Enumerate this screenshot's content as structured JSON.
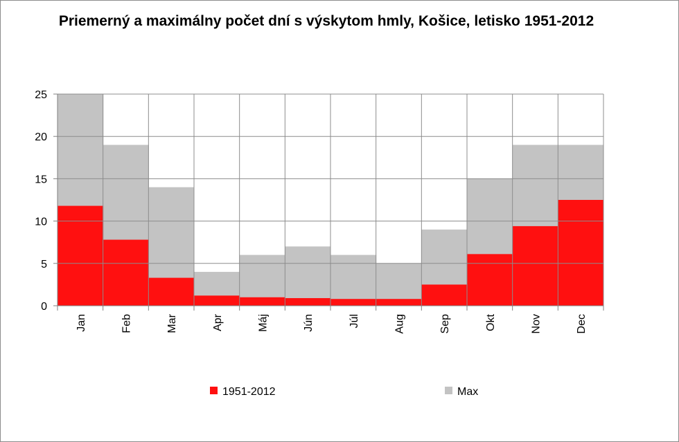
{
  "title": "Priemerný a maximálny počet dní s výskytom hmly, Košice, letisko 1951-2012",
  "chart_data": {
    "type": "area",
    "title": "Priemerný a maximálny počet dní s výskytom hmly, Košice, letisko 1951-2012",
    "xlabel": "",
    "ylabel": "",
    "categories": [
      "Jan",
      "Feb",
      "Mar",
      "Apr",
      "Máj",
      "Jún",
      "Júl",
      "Aug",
      "Sep",
      "Okt",
      "Nov",
      "Dec"
    ],
    "y_ticks": [
      0,
      5,
      10,
      15,
      20,
      25
    ],
    "ylim": [
      0,
      25
    ],
    "grid": true,
    "legend_position": "bottom",
    "series": [
      {
        "name": "1951-2012",
        "color": "#ff1010",
        "values": [
          11.8,
          7.8,
          3.3,
          1.2,
          1.0,
          0.9,
          0.8,
          0.8,
          2.5,
          6.1,
          9.4,
          12.5
        ]
      },
      {
        "name": "Max",
        "color": "#c3c3c3",
        "values": [
          25,
          19,
          14,
          4,
          6,
          7,
          6,
          5,
          9,
          15,
          19,
          19
        ]
      }
    ]
  }
}
